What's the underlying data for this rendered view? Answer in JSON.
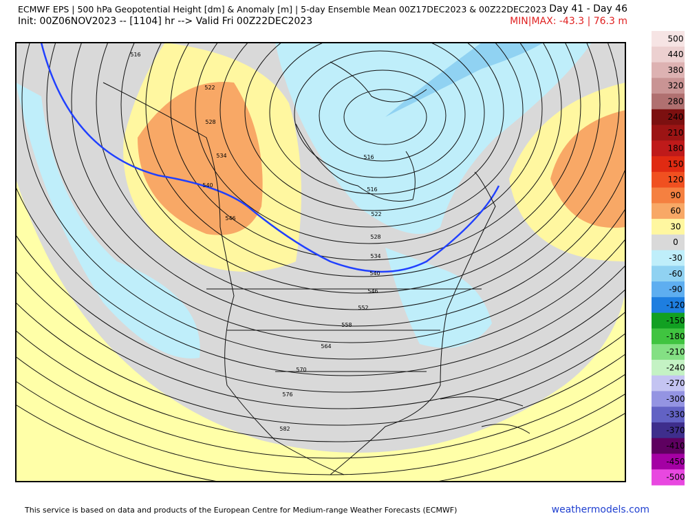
{
  "header": {
    "title": "ECMWF EPS | 500 hPa Geopotential Height [dm] & Anomaly [m] | 5-day Ensemble Mean 00Z17DEC2023 & 00Z22DEC2023",
    "days": "Day 41 - Day 46",
    "init": "Init: 00Z06NOV2023 -- [1104] hr --> Valid Fri 00Z22DEC2023",
    "minmax": "MIN|MAX: -43.3 | 76.3 m"
  },
  "map": {
    "contour_labels": [
      "516",
      "522",
      "528",
      "534",
      "540",
      "546",
      "516",
      "516",
      "522",
      "528",
      "534",
      "540",
      "546",
      "552",
      "558",
      "564",
      "570",
      "576",
      "582"
    ]
  },
  "colorbar": [
    {
      "label": "500",
      "color": "#f6e4e4"
    },
    {
      "label": "440",
      "color": "#ecd0d0"
    },
    {
      "label": "380",
      "color": "#ddb2b2"
    },
    {
      "label": "320",
      "color": "#c99494"
    },
    {
      "label": "280",
      "color": "#b07070"
    },
    {
      "label": "240",
      "color": "#7c1010"
    },
    {
      "label": "210",
      "color": "#9c1414"
    },
    {
      "label": "180",
      "color": "#bf1a1a"
    },
    {
      "label": "150",
      "color": "#e02a12"
    },
    {
      "label": "120",
      "color": "#f05020"
    },
    {
      "label": "90",
      "color": "#f58040"
    },
    {
      "label": "60",
      "color": "#f8a866"
    },
    {
      "label": "30",
      "color": "#fff7a0"
    },
    {
      "label": "0",
      "color": "#d9d9d9"
    },
    {
      "label": "-30",
      "color": "#bfeefa"
    },
    {
      "label": "-60",
      "color": "#90d2f2"
    },
    {
      "label": "-90",
      "color": "#5eaef0"
    },
    {
      "label": "-120",
      "color": "#1e7ee0"
    },
    {
      "label": "-150",
      "color": "#12a022"
    },
    {
      "label": "-180",
      "color": "#40c440"
    },
    {
      "label": "-210",
      "color": "#84e084"
    },
    {
      "label": "-240",
      "color": "#c4f2c4"
    },
    {
      "label": "-270",
      "color": "#c4c4f2"
    },
    {
      "label": "-300",
      "color": "#9494e2"
    },
    {
      "label": "-330",
      "color": "#6262c4"
    },
    {
      "label": "-370",
      "color": "#3e2e8c"
    },
    {
      "label": "-410",
      "color": "#5e0060"
    },
    {
      "label": "-450",
      "color": "#a400a4"
    },
    {
      "label": "-500",
      "color": "#e848e0"
    }
  ],
  "footer": {
    "disclaimer": "This service is based on data and products of the European Centre for Medium-range Weather Forecasts (ECMWF)",
    "site": "weathermodels.com"
  }
}
